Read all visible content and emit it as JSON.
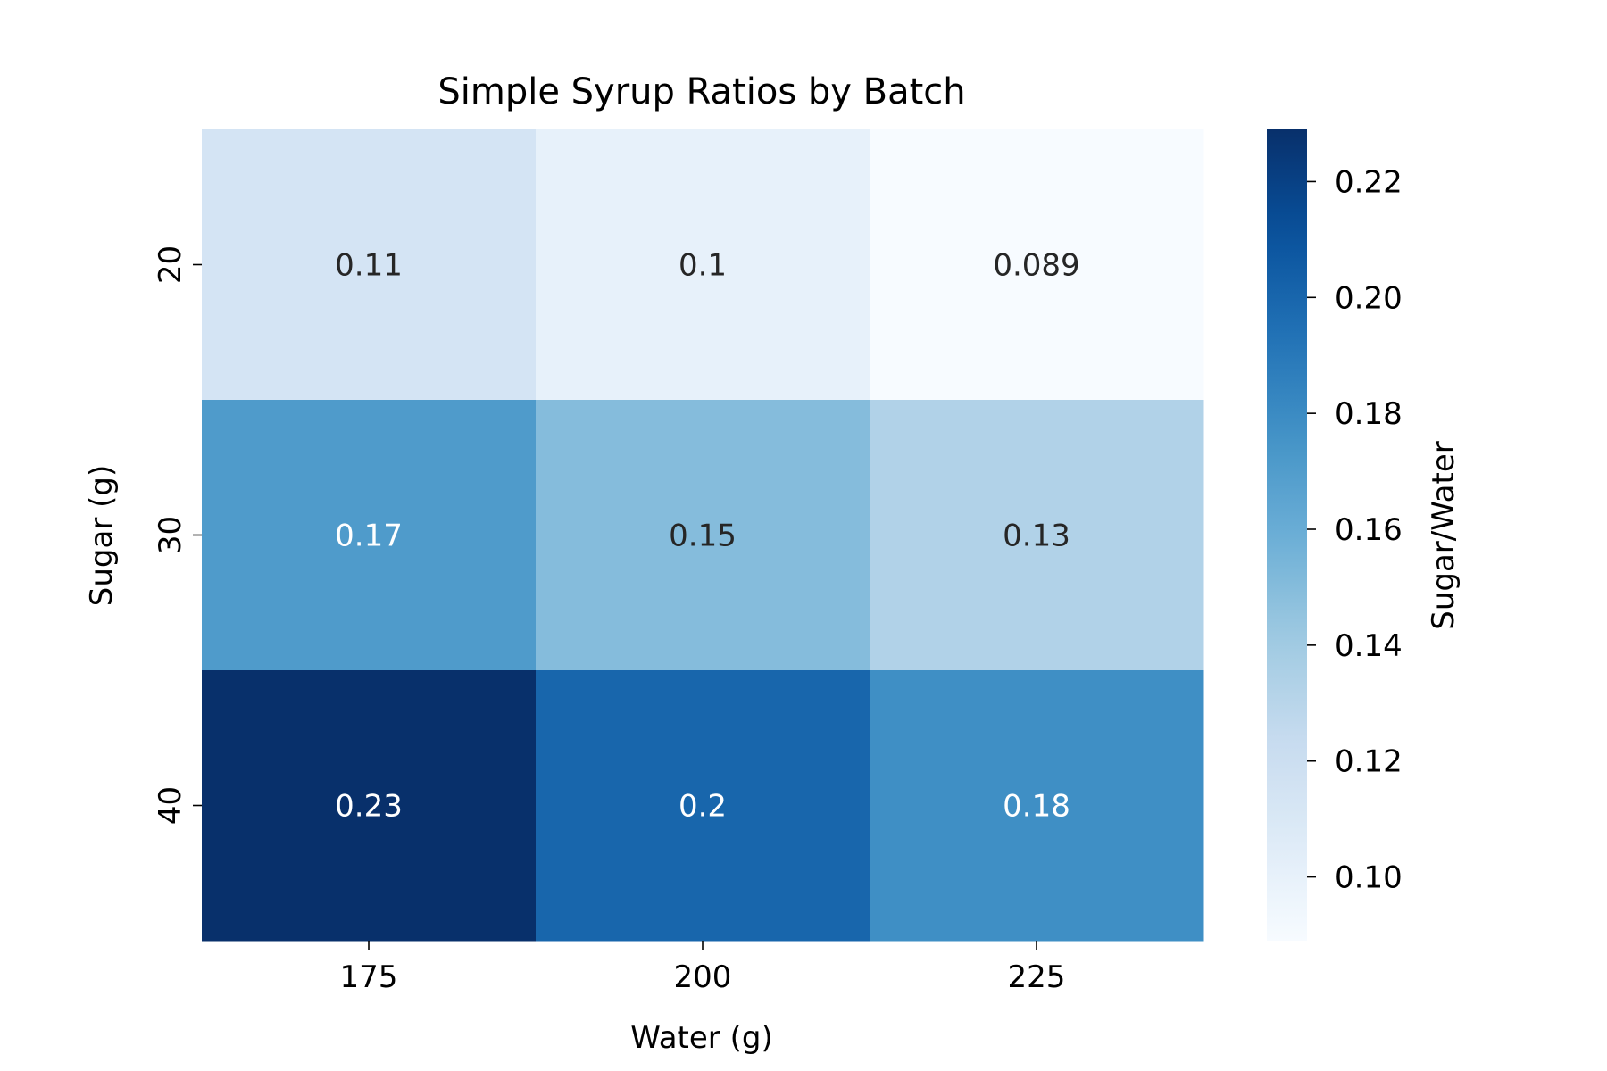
{
  "chart_data": {
    "type": "heatmap",
    "title": "Simple Syrup Ratios by Batch",
    "xlabel": "Water (g)",
    "ylabel": "Sugar (g)",
    "x_categories": [
      "175",
      "200",
      "225"
    ],
    "y_categories": [
      "20",
      "30",
      "40"
    ],
    "values": [
      [
        0.114,
        0.1,
        0.089
      ],
      [
        0.171,
        0.15,
        0.133
      ],
      [
        0.229,
        0.2,
        0.178
      ]
    ],
    "annotations": [
      [
        "0.11",
        "0.1",
        "0.089"
      ],
      [
        "0.17",
        "0.15",
        "0.13"
      ],
      [
        "0.23",
        "0.2",
        "0.18"
      ]
    ],
    "colormap": "Blues",
    "colorbar": {
      "label": "Sugar/Water",
      "range": [
        0.089,
        0.229
      ],
      "ticks": [
        0.1,
        0.12,
        0.14,
        0.16,
        0.18,
        0.2,
        0.22
      ],
      "tick_labels": [
        "0.10",
        "0.12",
        "0.14",
        "0.16",
        "0.18",
        "0.20",
        "0.22"
      ]
    },
    "annotation_colors": {
      "light": "#262626",
      "dark": "#ffffff"
    }
  }
}
